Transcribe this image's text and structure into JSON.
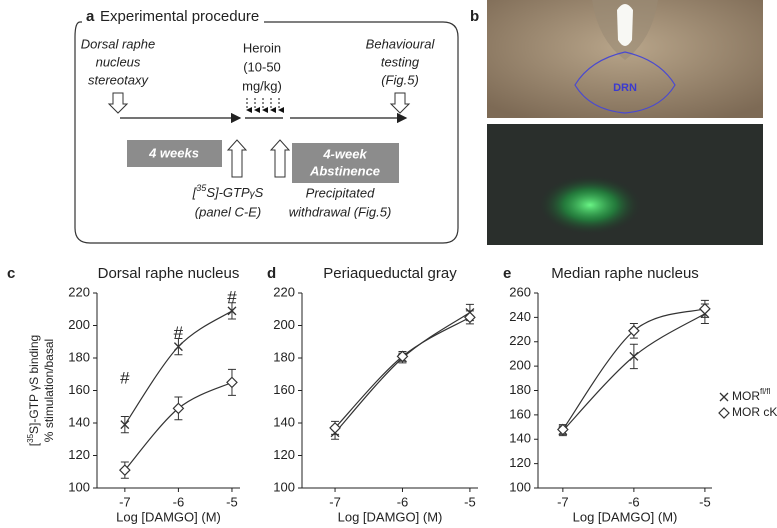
{
  "procedure": {
    "letter": "a",
    "title": "Experimental procedure",
    "stereotaxy": [
      "Dorsal raphe",
      "nucleus",
      "stereotaxy"
    ],
    "heroin": [
      "Heroin",
      "(10-50",
      "mg/kg)"
    ],
    "testing": [
      "Behavioural",
      "testing",
      "(Fig.5)"
    ],
    "weeks": "4 weeks",
    "abstinence": [
      "4-week",
      "Abstinence"
    ],
    "binding": [
      "[",
      "35",
      "S]-GTP",
      "γ",
      "S",
      "(panel C-E)"
    ],
    "withdrawal": [
      "Precipitated",
      "withdrawal (Fig.5)"
    ]
  },
  "images": {
    "letter": "b",
    "region_label": "DRN"
  },
  "chart_data": [
    {
      "type": "line",
      "letter": "c",
      "title": "Dorsal raphe nucleus",
      "xlabel": "Log [DAMGO] (M)",
      "ylabel_parts": [
        "[",
        "35",
        "S]-GTP ",
        "γ",
        "S binding"
      ],
      "ylabel2": "% stimulation/basal",
      "x": [
        -7,
        -6,
        -5
      ],
      "xlim": [
        -7.52,
        -4.85
      ],
      "xticks": [
        -7,
        -6,
        -5
      ],
      "ylim": [
        100,
        220
      ],
      "yticks": [
        100,
        120,
        140,
        160,
        180,
        200,
        220
      ],
      "series": [
        {
          "marker": "cross",
          "color": "#333",
          "values": [
            139,
            187,
            209
          ],
          "errors": [
            5,
            5,
            5
          ]
        },
        {
          "marker": "diamond",
          "color": "#333",
          "values": [
            111,
            149,
            165
          ],
          "errors": [
            5,
            7,
            8
          ]
        }
      ],
      "annotations": [
        {
          "text": "#",
          "x": -7,
          "y": 167
        },
        {
          "text": "#",
          "x": -6,
          "y": 195
        },
        {
          "text": "#",
          "x": -5,
          "y": 217
        }
      ]
    },
    {
      "type": "line",
      "letter": "d",
      "title": "Periaqueductal gray",
      "xlabel": "Log [DAMGO] (M)",
      "x": [
        -7,
        -6,
        -5
      ],
      "xlim": [
        -7.49,
        -4.88
      ],
      "xticks": [
        -7,
        -6,
        -5
      ],
      "ylim": [
        100,
        220
      ],
      "yticks": [
        100,
        120,
        140,
        160,
        180,
        200,
        220
      ],
      "series": [
        {
          "marker": "cross",
          "color": "#333",
          "values": [
            134,
            180,
            208
          ],
          "errors": [
            4,
            3,
            5
          ]
        },
        {
          "marker": "diamond",
          "color": "#333",
          "values": [
            137,
            181,
            205
          ],
          "errors": [
            4,
            3,
            4
          ]
        }
      ]
    },
    {
      "type": "line",
      "letter": "e",
      "title": "Median raphe nucleus",
      "xlabel": "Log [DAMGO] (M)",
      "x": [
        -7,
        -6,
        -5
      ],
      "xlim": [
        -7.35,
        -4.9
      ],
      "xticks": [
        -7,
        -6,
        -5
      ],
      "ylim": [
        100,
        260
      ],
      "yticks": [
        100,
        120,
        140,
        160,
        180,
        200,
        220,
        240,
        260
      ],
      "series": [
        {
          "name": "MOR",
          "name_superscript": "fl/fl",
          "marker": "cross",
          "color": "#333",
          "values": [
            147,
            208,
            243
          ],
          "errors": [
            4,
            10,
            8
          ]
        },
        {
          "name": "MOR cKO",
          "marker": "diamond",
          "color": "#333",
          "values": [
            148,
            229,
            247
          ],
          "errors": [
            4,
            6,
            7
          ]
        }
      ]
    }
  ]
}
